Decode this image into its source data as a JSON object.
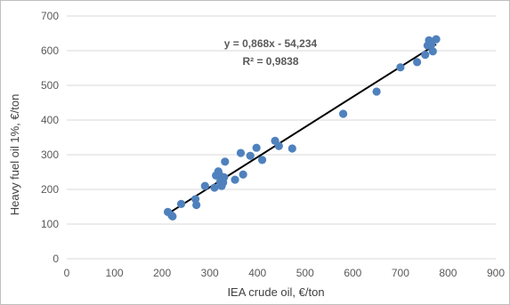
{
  "chart_data": {
    "type": "scatter",
    "xlabel": "IEA crude oil, €/ton",
    "ylabel": "Heavy fuel oil 1%, €/ton",
    "xlim": [
      0,
      900
    ],
    "ylim": [
      0,
      700
    ],
    "xticks": [
      0,
      100,
      200,
      300,
      400,
      500,
      600,
      700,
      800,
      900
    ],
    "yticks": [
      0,
      100,
      200,
      300,
      400,
      500,
      600,
      700
    ],
    "grid": "horizontal",
    "marker_color": "#4f81bd",
    "trendline": {
      "slope": 0.868,
      "intercept": -54.234,
      "x_range": [
        210,
        775
      ],
      "color": "#000000",
      "equation_label": "y = 0,868x - 54,234",
      "r2_label": "R² = 0,9838"
    },
    "points": [
      {
        "x": 212,
        "y": 135
      },
      {
        "x": 220,
        "y": 125
      },
      {
        "x": 222,
        "y": 122
      },
      {
        "x": 240,
        "y": 158
      },
      {
        "x": 270,
        "y": 172
      },
      {
        "x": 272,
        "y": 155
      },
      {
        "x": 290,
        "y": 210
      },
      {
        "x": 310,
        "y": 205
      },
      {
        "x": 313,
        "y": 240
      },
      {
        "x": 318,
        "y": 252
      },
      {
        "x": 320,
        "y": 243
      },
      {
        "x": 322,
        "y": 222
      },
      {
        "x": 325,
        "y": 210
      },
      {
        "x": 328,
        "y": 220
      },
      {
        "x": 330,
        "y": 235
      },
      {
        "x": 332,
        "y": 280
      },
      {
        "x": 353,
        "y": 228
      },
      {
        "x": 365,
        "y": 305
      },
      {
        "x": 370,
        "y": 243
      },
      {
        "x": 385,
        "y": 297
      },
      {
        "x": 398,
        "y": 320
      },
      {
        "x": 410,
        "y": 285
      },
      {
        "x": 437,
        "y": 340
      },
      {
        "x": 445,
        "y": 325
      },
      {
        "x": 473,
        "y": 318
      },
      {
        "x": 580,
        "y": 418
      },
      {
        "x": 650,
        "y": 482
      },
      {
        "x": 700,
        "y": 552
      },
      {
        "x": 735,
        "y": 567
      },
      {
        "x": 752,
        "y": 588
      },
      {
        "x": 757,
        "y": 615
      },
      {
        "x": 760,
        "y": 630
      },
      {
        "x": 762,
        "y": 622
      },
      {
        "x": 765,
        "y": 618
      },
      {
        "x": 768,
        "y": 598
      },
      {
        "x": 775,
        "y": 633
      }
    ]
  }
}
